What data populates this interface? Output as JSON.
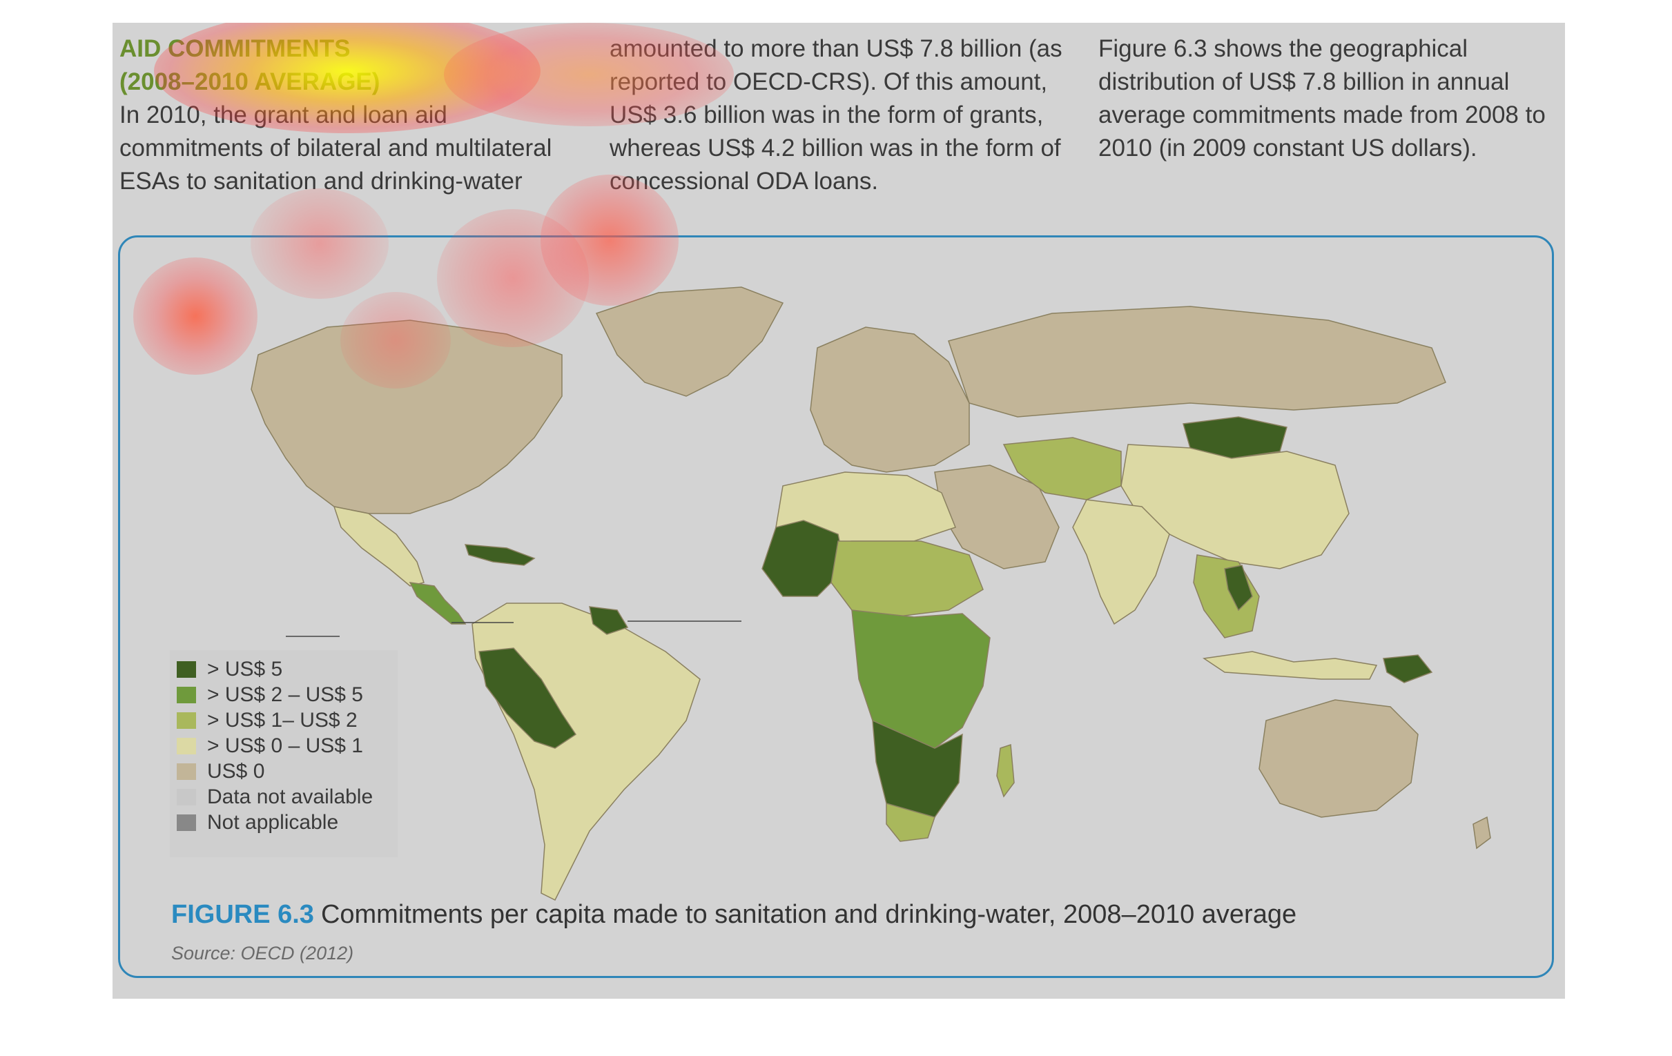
{
  "text": {
    "heading_line1": "AID COMMITMENTS",
    "heading_line2": "(2008–2010 AVERAGE)",
    "col1_body": "In 2010, the grant and loan aid commitments of bilateral and multilateral ESAs to sanitation and drinking-water",
    "col2_body": "amounted to more than US$ 7.8 billion (as reported to OECD-CRS). Of this amount, US$ 3.6 billion was in the form of grants, whereas US$ 4.2 billion was in the form of concessional ODA loans.",
    "col3_body": "Figure 6.3 shows the geographical distribution of US$ 7.8 billion in annual average commitments made from 2008 to 2010 (in 2009 constant US dollars)."
  },
  "figure": {
    "label": "FIGURE 6.3",
    "caption": "Commitments per capita made to sanitation and drinking-water, 2008–2010 average",
    "source": "Source: OECD (2012)"
  },
  "legend": {
    "items": [
      {
        "label": "> US$ 5",
        "color": "#3f5f22"
      },
      {
        "label": "> US$ 2 – US$ 5",
        "color": "#6f9a3c"
      },
      {
        "label": "> US$ 1– US$ 2",
        "color": "#a9b85c"
      },
      {
        "label": "> US$ 0 – US$ 1",
        "color": "#dcd9a4"
      },
      {
        "label": "US$ 0",
        "color": "#c2b598"
      },
      {
        "label": "Data not available",
        "color": "#c8c8c8"
      },
      {
        "label": "Not applicable",
        "color": "#888888"
      }
    ]
  },
  "colors": {
    "accent_blue": "#2a8ac0",
    "heading_green": "#6a8f2f",
    "page_gray": "#d3d3d3"
  }
}
